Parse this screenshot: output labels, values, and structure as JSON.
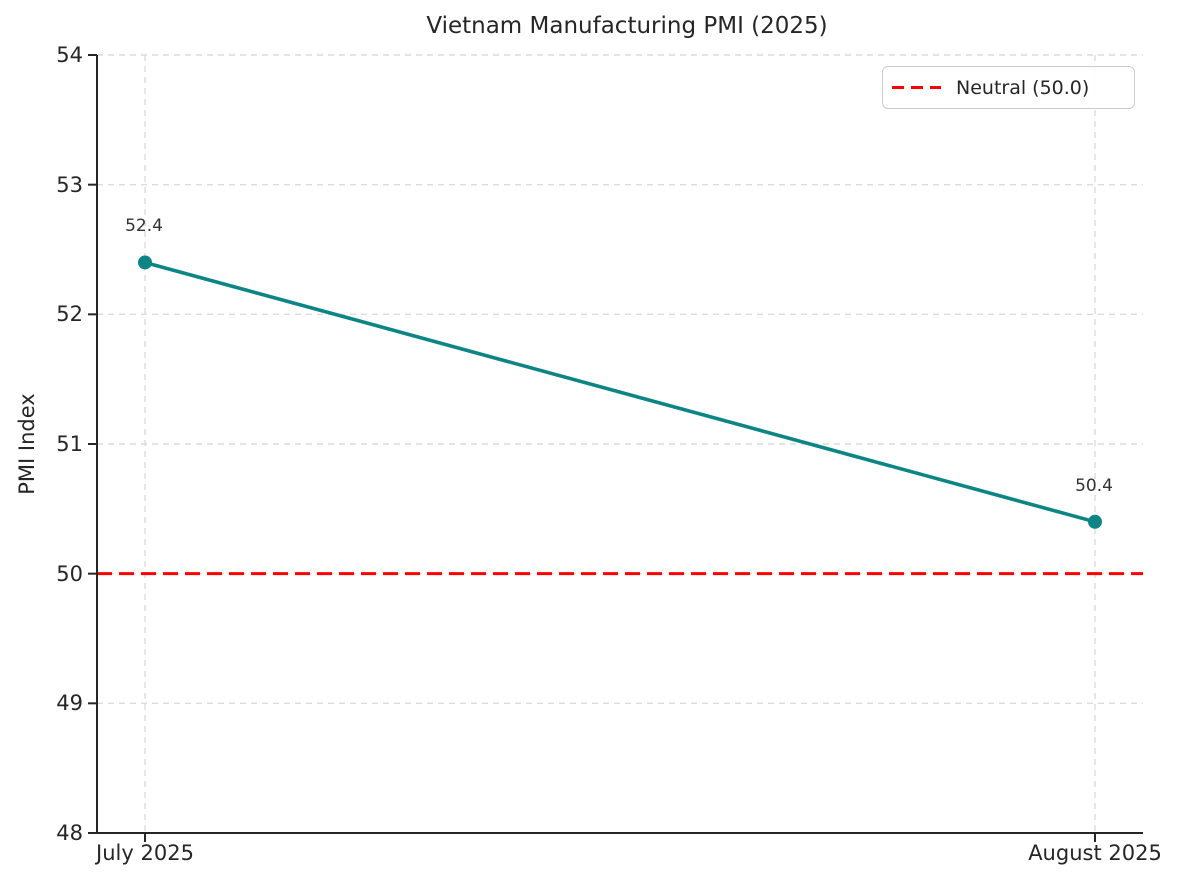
{
  "chart_data": {
    "type": "line",
    "title": "Vietnam Manufacturing PMI (2025)",
    "ylabel": "PMI Index",
    "xlabel": "",
    "categories": [
      "July 2025",
      "August 2025"
    ],
    "series": [
      {
        "name": "PMI",
        "values": [
          52.4,
          50.4
        ],
        "color": "#0e8585"
      }
    ],
    "point_labels": [
      "52.4",
      "50.4"
    ],
    "ylim": [
      48,
      54
    ],
    "yticks": [
      48,
      49,
      50,
      51,
      52,
      53,
      54
    ],
    "grid": true,
    "grid_style": "dashed",
    "reference_line": {
      "value": 50.0,
      "label": "Neutral (50.0)",
      "color": "#ff0000",
      "style": "dashed"
    },
    "legend": {
      "position": "upper right",
      "entries": [
        {
          "label": "Neutral (50.0)",
          "color": "#ff0000",
          "style": "dashed"
        }
      ]
    },
    "colors": {
      "grid": "#dcdcdc",
      "axis": "#262626",
      "text": "#262626",
      "annotation": "#333333"
    }
  }
}
